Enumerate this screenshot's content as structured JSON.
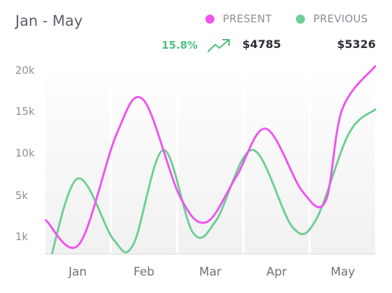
{
  "header": {
    "title": "Jan - May",
    "change": "15.8%",
    "trend_icon": "trending-up-icon",
    "present_amount": "$4785",
    "previous_amount": "$5326"
  },
  "legend": [
    {
      "label": "PRESENT",
      "color": "#ee55ee"
    },
    {
      "label": "PREVIOUS",
      "color": "#6ecf95"
    }
  ],
  "chart_data": {
    "type": "line",
    "title": "Jan - May",
    "categories": [
      "Jan",
      "Feb",
      "Mar",
      "Apr",
      "May"
    ],
    "y_ticks": [
      "20k",
      "15k",
      "10k",
      "5k",
      "1k"
    ],
    "ylim": [
      0,
      20000
    ],
    "grid": "vertical bands",
    "legend_position": "top-right",
    "series": [
      {
        "name": "PRESENT",
        "color": "#ee55ee",
        "points": [
          {
            "x": 0.0,
            "y": 3500
          },
          {
            "x": 0.48,
            "y": 1000
          },
          {
            "x": 1.05,
            "y": 12500
          },
          {
            "x": 1.45,
            "y": 16000
          },
          {
            "x": 2.0,
            "y": 6000
          },
          {
            "x": 2.4,
            "y": 3300
          },
          {
            "x": 2.85,
            "y": 8000
          },
          {
            "x": 3.3,
            "y": 13000
          },
          {
            "x": 3.85,
            "y": 6500
          },
          {
            "x": 4.2,
            "y": 5500
          },
          {
            "x": 4.45,
            "y": 15000
          },
          {
            "x": 4.95,
            "y": 19500
          }
        ]
      },
      {
        "name": "PREVIOUS",
        "color": "#6ecf95",
        "points": [
          {
            "x": 0.0,
            "y": -2500
          },
          {
            "x": 0.45,
            "y": 7800
          },
          {
            "x": 1.0,
            "y": 1500
          },
          {
            "x": 1.3,
            "y": 1000
          },
          {
            "x": 1.75,
            "y": 10800
          },
          {
            "x": 2.2,
            "y": 2200
          },
          {
            "x": 2.55,
            "y": 3500
          },
          {
            "x": 3.1,
            "y": 10800
          },
          {
            "x": 3.7,
            "y": 2800
          },
          {
            "x": 4.05,
            "y": 3500
          },
          {
            "x": 4.55,
            "y": 12500
          },
          {
            "x": 4.95,
            "y": 15000
          }
        ]
      }
    ]
  }
}
